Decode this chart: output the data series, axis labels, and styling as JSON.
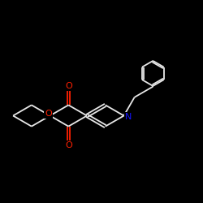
{
  "bg_color": "#000000",
  "bond_color": "#e8e8e8",
  "O_color": "#ff2000",
  "N_color": "#1414ff",
  "lw": 1.3,
  "fs": 8.0,
  "xlim": [
    0,
    10
  ],
  "ylim": [
    0,
    10
  ]
}
